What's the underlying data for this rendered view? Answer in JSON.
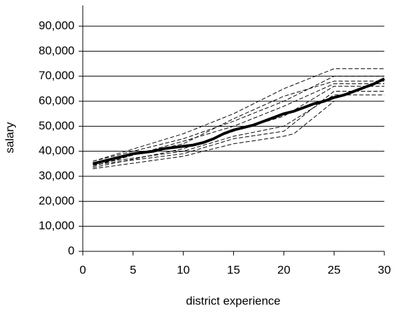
{
  "chart_data": {
    "type": "line",
    "xlabel": "district experience",
    "ylabel": "salary",
    "x": [
      1,
      2,
      3,
      4,
      5,
      6,
      7,
      8,
      9,
      10,
      11,
      12,
      13,
      14,
      15,
      16,
      17,
      18,
      19,
      20,
      21,
      22,
      23,
      24,
      25,
      26,
      27,
      28,
      29,
      30
    ],
    "series": [
      {
        "color": "#000000",
        "dashed": false,
        "values": [
          35000,
          36000,
          37000,
          38000,
          39000,
          39500,
          40000,
          41000,
          41500,
          42000,
          42500,
          43500,
          45000,
          47000,
          48500,
          49500,
          50500,
          52000,
          53500,
          55000,
          56000,
          57500,
          59000,
          60000,
          61500,
          62500,
          64000,
          65500,
          67000,
          69000
        ]
      },
      {
        "color": "#000000",
        "dashed": true,
        "x": [
          1,
          10,
          15,
          20,
          21,
          25,
          30
        ],
        "values": [
          33000,
          38000,
          43000,
          46000,
          47000,
          60000,
          60000
        ]
      },
      {
        "color": "#000000",
        "dashed": true,
        "x": [
          1,
          10,
          15,
          20,
          25,
          30
        ],
        "values": [
          36000,
          47000,
          55000,
          65000,
          73000,
          73000
        ]
      },
      {
        "color": "#000000",
        "dashed": true,
        "x": [
          1,
          10,
          15,
          20,
          25,
          30
        ],
        "values": [
          34000,
          44000,
          50000,
          58000,
          67000,
          67000
        ]
      },
      {
        "color": "#000000",
        "dashed": true,
        "x": [
          1,
          10,
          15,
          20,
          25,
          30
        ],
        "values": [
          35000,
          40000,
          46000,
          50000,
          62500,
          62500
        ]
      },
      {
        "color": "#000000",
        "dashed": true,
        "x": [
          1,
          10,
          15,
          20,
          25,
          30
        ],
        "values": [
          36000,
          45000,
          52000,
          60000,
          70000,
          70000
        ]
      },
      {
        "color": "#000000",
        "dashed": true,
        "x": [
          1,
          10,
          15,
          20,
          25,
          30
        ],
        "values": [
          33500,
          41000,
          48000,
          54000,
          66000,
          66000
        ]
      },
      {
        "color": "#000000",
        "dashed": true,
        "x": [
          1,
          10,
          15,
          20,
          25,
          30
        ],
        "values": [
          35000,
          43000,
          53000,
          62000,
          68000,
          68000
        ]
      },
      {
        "color": "#000000",
        "dashed": true,
        "x": [
          1,
          10,
          15,
          20,
          25,
          30
        ],
        "values": [
          34500,
          39000,
          45000,
          48000,
          64000,
          64000
        ]
      }
    ],
    "xlim": [
      0,
      30
    ],
    "xticks": [
      0,
      5,
      10,
      15,
      20,
      25,
      30
    ],
    "ylim": [
      0,
      100000
    ],
    "yticks": [
      0,
      {
        "value": 10000,
        "label": "10,000"
      },
      {
        "value": 20000,
        "label": "20,000"
      },
      {
        "value": 30000,
        "label": "30,000"
      },
      {
        "value": 40000,
        "label": "40,000"
      },
      {
        "value": 50000,
        "label": "50,000"
      },
      {
        "value": 60000,
        "label": "60,000"
      },
      {
        "value": 70000,
        "label": "70,000"
      },
      {
        "value": 80000,
        "label": "80,000"
      },
      {
        "value": 90000,
        "label": "90,000"
      }
    ],
    "grid": true
  }
}
